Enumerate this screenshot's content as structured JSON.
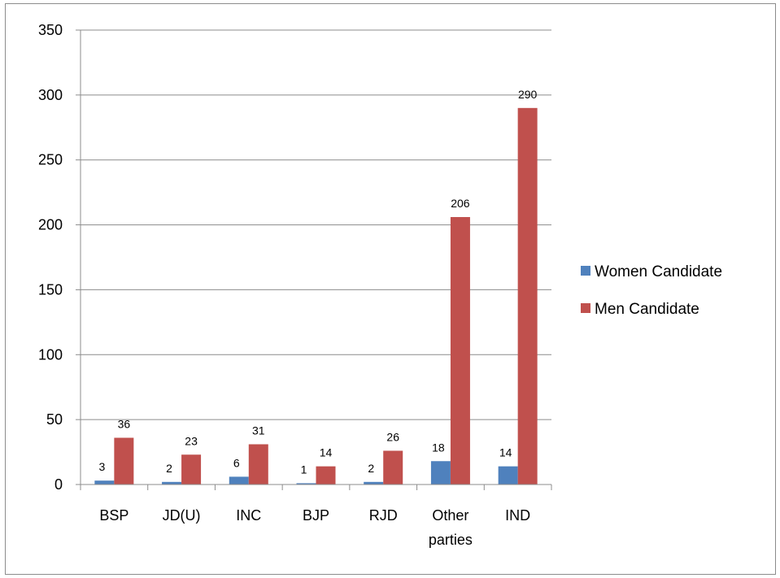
{
  "chart_data": {
    "type": "bar",
    "categories": [
      "BSP",
      "JD(U)",
      "INC",
      "BJP",
      "RJD",
      "Other parties",
      "IND"
    ],
    "series": [
      {
        "name": "Women Candidate",
        "values": [
          3,
          2,
          6,
          1,
          2,
          18,
          14
        ],
        "color": "#4f81bd"
      },
      {
        "name": "Men Candidate",
        "values": [
          36,
          23,
          31,
          14,
          26,
          206,
          290
        ],
        "color": "#c0504d"
      }
    ],
    "title": "",
    "xlabel": "",
    "ylabel": "",
    "ylim": [
      0,
      350
    ],
    "yticks": [
      0,
      50,
      100,
      150,
      200,
      250,
      300,
      350
    ],
    "grid": true,
    "legend_position": "right",
    "data_labels": true
  }
}
